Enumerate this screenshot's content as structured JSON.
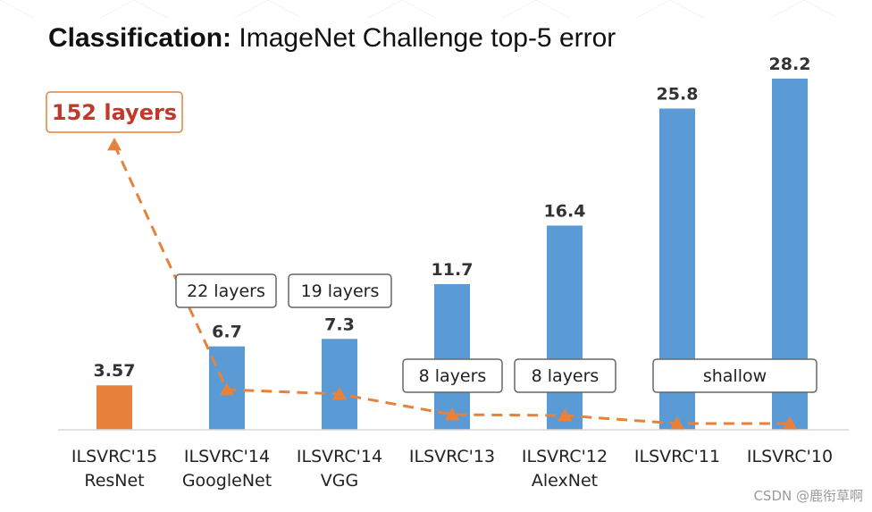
{
  "title": {
    "bold": "Classification:",
    "rest": " ImageNet Challenge top-5 error"
  },
  "chart_data": {
    "type": "bar",
    "title": "Classification: ImageNet Challenge top-5 error",
    "categories": [
      [
        "ILSVRC'15",
        "ResNet"
      ],
      [
        "ILSVRC'14",
        "GoogleNet"
      ],
      [
        "ILSVRC'14",
        "VGG"
      ],
      [
        "ILSVRC'13"
      ],
      [
        "ILSVRC'12",
        "AlexNet"
      ],
      [
        "ILSVRC'11"
      ],
      [
        "ILSVRC'10"
      ]
    ],
    "values": [
      3.57,
      6.7,
      7.3,
      11.7,
      16.4,
      25.8,
      28.2
    ],
    "value_labels": [
      "3.57",
      "6.7",
      "7.3",
      "11.7",
      "16.4",
      "25.8",
      "28.2"
    ],
    "bar_colors": [
      "#e8823a",
      "#5b9bd5",
      "#5b9bd5",
      "#5b9bd5",
      "#5b9bd5",
      "#5b9bd5",
      "#5b9bd5"
    ],
    "ylim": [
      0,
      30
    ],
    "grid": false,
    "depth_annotations": [
      "152 layers",
      "22 layers",
      "19 layers",
      "8 layers",
      "8 layers",
      "shallow"
    ],
    "depth_line_color": "#e8823a",
    "highlight_color": "#c0392b"
  },
  "watermark": "CSDN @鹿衔草啊"
}
